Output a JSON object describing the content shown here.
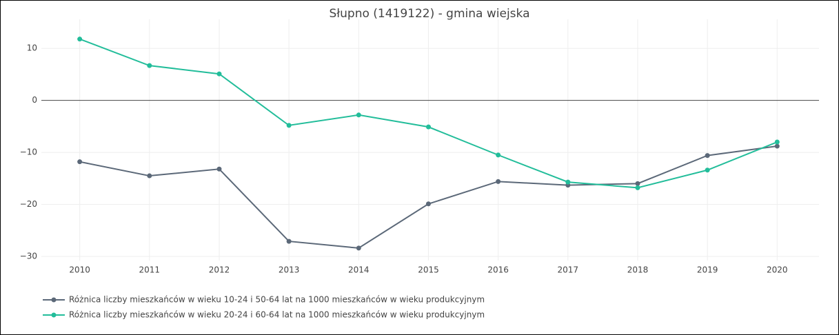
{
  "chart_data": {
    "type": "line",
    "title": "Słupno (1419122) - gmina wiejska",
    "x": [
      2010,
      2011,
      2012,
      2013,
      2014,
      2015,
      2016,
      2017,
      2018,
      2019,
      2020
    ],
    "series": [
      {
        "name": "Różnica liczby mieszkańców w wieku 10-24 i 50-64 lat na 1000 mieszkańców w wieku produkcyjnym",
        "color": "#5b6878",
        "values": [
          -11.8,
          -14.5,
          -13.2,
          -27.1,
          -28.4,
          -19.9,
          -15.6,
          -16.3,
          -16.0,
          -10.6,
          -8.8
        ]
      },
      {
        "name": "Różnica liczby mieszkańców w wieku 20-24 i 60-64 lat na 1000 mieszkańców w wieku produkcyjnym",
        "color": "#22bd9a",
        "values": [
          11.8,
          6.7,
          5.1,
          -4.8,
          -2.8,
          -5.1,
          -10.5,
          -15.7,
          -16.8,
          -13.4,
          -8.0
        ]
      }
    ],
    "xlim": [
      2009.45,
      2020.6
    ],
    "xticks": [
      2010,
      2011,
      2012,
      2013,
      2014,
      2015,
      2016,
      2017,
      2018,
      2019,
      2020
    ],
    "ylim": [
      -30.8,
      15.6
    ],
    "yticks": [
      10,
      0,
      {
        "value": -10,
        "label": "−10"
      },
      {
        "value": -20,
        "label": "−20"
      },
      {
        "value": -30,
        "label": "−30"
      }
    ],
    "grid": true,
    "zeroline": true,
    "legend": "bottom"
  }
}
